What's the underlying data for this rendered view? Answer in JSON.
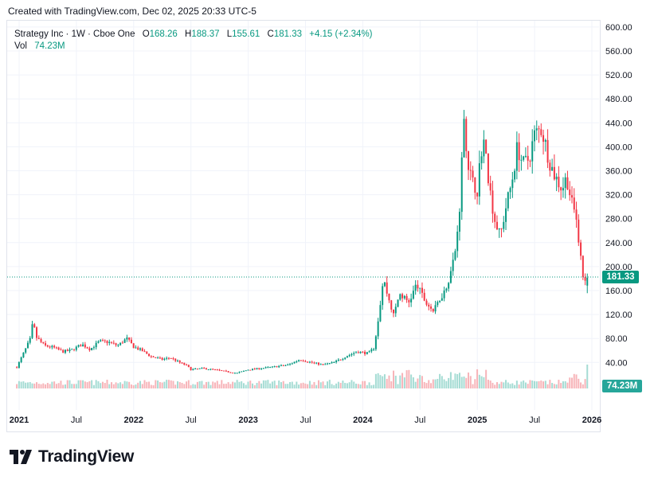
{
  "header": {
    "caption": "Created with TradingView.com, Dec 02, 2025 20:33 UTC-5"
  },
  "legend": {
    "symbol": "Strategy Inc · 1W · Cboe One",
    "o_label": "O",
    "o_value": "168.26",
    "h_label": "H",
    "h_value": "188.37",
    "l_label": "L",
    "l_value": "155.61",
    "c_label": "C",
    "c_value": "181.33",
    "change": "+4.15 (+2.34%)",
    "vol_label": "Vol",
    "vol_value": "74.23M"
  },
  "price_label": "181.33",
  "volume_label": "74.23M",
  "brand": {
    "name": "TradingView",
    "logo_icon": "tradingview-logo-icon"
  },
  "colors": {
    "up": "#089981",
    "down": "#f23645",
    "up_vol": "#a5dcd4",
    "down_vol": "#f7b4b9",
    "grid": "#f0f3fa"
  },
  "chart_data": {
    "type": "candlestick",
    "title": "Strategy Inc · 1W · Cboe One",
    "interval": "1W",
    "xlabel": "",
    "ylabel": "",
    "ylim": [
      0,
      600
    ],
    "y_ticks": [
      "40.00",
      "80.00",
      "120.00",
      "160.00",
      "200.00",
      "240.00",
      "280.00",
      "320.00",
      "360.00",
      "400.00",
      "440.00",
      "480.00",
      "520.00",
      "560.00",
      "600.00"
    ],
    "x_ticks": [
      "2021",
      "Jul",
      "2022",
      "Jul",
      "2023",
      "Jul",
      "2024",
      "Jul",
      "2025",
      "Jul",
      "2026"
    ],
    "x_tick_times": [
      2021.0,
      2021.5,
      2022.0,
      2022.5,
      2023.0,
      2023.5,
      2024.0,
      2024.5,
      2025.0,
      2025.5,
      2026.0
    ],
    "xlim": [
      2020.98,
      2026.02
    ],
    "last": {
      "open": 168.26,
      "high": 188.37,
      "low": 155.61,
      "close": 181.33,
      "volume": "74.23M"
    },
    "grid": true,
    "close_anchors": [
      [
        2020.98,
        32
      ],
      [
        2021.05,
        60
      ],
      [
        2021.1,
        80
      ],
      [
        2021.12,
        108
      ],
      [
        2021.15,
        82
      ],
      [
        2021.22,
        68
      ],
      [
        2021.3,
        65
      ],
      [
        2021.38,
        58
      ],
      [
        2021.45,
        60
      ],
      [
        2021.55,
        70
      ],
      [
        2021.62,
        62
      ],
      [
        2021.7,
        75
      ],
      [
        2021.78,
        74
      ],
      [
        2021.86,
        68
      ],
      [
        2021.94,
        80
      ],
      [
        2022.0,
        66
      ],
      [
        2022.07,
        60
      ],
      [
        2022.15,
        50
      ],
      [
        2022.25,
        45
      ],
      [
        2022.32,
        48
      ],
      [
        2022.4,
        40
      ],
      [
        2022.46,
        35
      ],
      [
        2022.5,
        28
      ],
      [
        2022.6,
        30
      ],
      [
        2022.7,
        28
      ],
      [
        2022.8,
        25
      ],
      [
        2022.9,
        22
      ],
      [
        2023.0,
        28
      ],
      [
        2023.1,
        30
      ],
      [
        2023.2,
        32
      ],
      [
        2023.35,
        36
      ],
      [
        2023.45,
        45
      ],
      [
        2023.55,
        40
      ],
      [
        2023.65,
        36
      ],
      [
        2023.75,
        40
      ],
      [
        2023.85,
        50
      ],
      [
        2023.95,
        58
      ],
      [
        2024.05,
        55
      ],
      [
        2024.1,
        65
      ],
      [
        2024.14,
        120
      ],
      [
        2024.18,
        180
      ],
      [
        2024.22,
        150
      ],
      [
        2024.27,
        118
      ],
      [
        2024.32,
        155
      ],
      [
        2024.4,
        140
      ],
      [
        2024.47,
        170
      ],
      [
        2024.55,
        140
      ],
      [
        2024.62,
        125
      ],
      [
        2024.68,
        150
      ],
      [
        2024.72,
        160
      ],
      [
        2024.78,
        200
      ],
      [
        2024.82,
        240
      ],
      [
        2024.86,
        340
      ],
      [
        2024.88,
        480
      ],
      [
        2024.9,
        400
      ],
      [
        2024.95,
        340
      ],
      [
        2025.0,
        330
      ],
      [
        2025.05,
        420
      ],
      [
        2025.1,
        340
      ],
      [
        2025.15,
        280
      ],
      [
        2025.2,
        250
      ],
      [
        2025.25,
        300
      ],
      [
        2025.3,
        340
      ],
      [
        2025.35,
        400
      ],
      [
        2025.4,
        370
      ],
      [
        2025.45,
        380
      ],
      [
        2025.5,
        420
      ],
      [
        2025.56,
        430
      ],
      [
        2025.6,
        400
      ],
      [
        2025.64,
        370
      ],
      [
        2025.68,
        350
      ],
      [
        2025.74,
        330
      ],
      [
        2025.78,
        350
      ],
      [
        2025.82,
        310
      ],
      [
        2025.86,
        280
      ],
      [
        2025.89,
        240
      ],
      [
        2025.92,
        180
      ],
      [
        2025.95,
        181.33
      ]
    ],
    "volume_ylim": [
      0,
      80
    ]
  }
}
